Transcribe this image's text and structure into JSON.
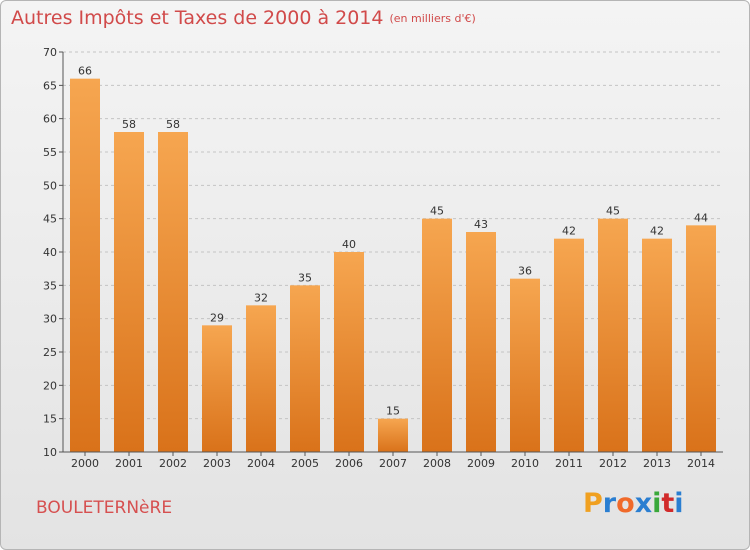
{
  "title": "Autres Impôts et Taxes de 2000 à 2014",
  "subtitle": "(en milliers d'€)",
  "place": "BOULETERNèRE",
  "logo": {
    "letters": [
      "P",
      "r",
      "o",
      "x",
      "i",
      "t",
      "i"
    ],
    "colors": [
      "#f0a020",
      "#2a7ed1",
      "#f06a2a",
      "#2a7ed1",
      "#3aa83a",
      "#d12a2a",
      "#2a7ed1"
    ]
  },
  "colors": {
    "title": "#d14a4a",
    "bar_top": "#f6a650",
    "bar_bottom": "#d9721a"
  },
  "chart_data": {
    "type": "bar",
    "categories": [
      "2000",
      "2001",
      "2002",
      "2003",
      "2004",
      "2005",
      "2006",
      "2007",
      "2008",
      "2009",
      "2010",
      "2011",
      "2012",
      "2013",
      "2014"
    ],
    "values": [
      66,
      58,
      58,
      29,
      32,
      35,
      40,
      15,
      45,
      43,
      36,
      42,
      45,
      42,
      44
    ],
    "title": "Autres Impôts et Taxes de 2000 à 2014",
    "subtitle": "(en milliers d'€)",
    "xlabel": "",
    "ylabel": "",
    "ylim": [
      10,
      70
    ],
    "yticks": [
      10,
      15,
      20,
      25,
      30,
      35,
      40,
      45,
      50,
      55,
      60,
      65,
      70
    ],
    "grid": "horizontal dashed"
  }
}
